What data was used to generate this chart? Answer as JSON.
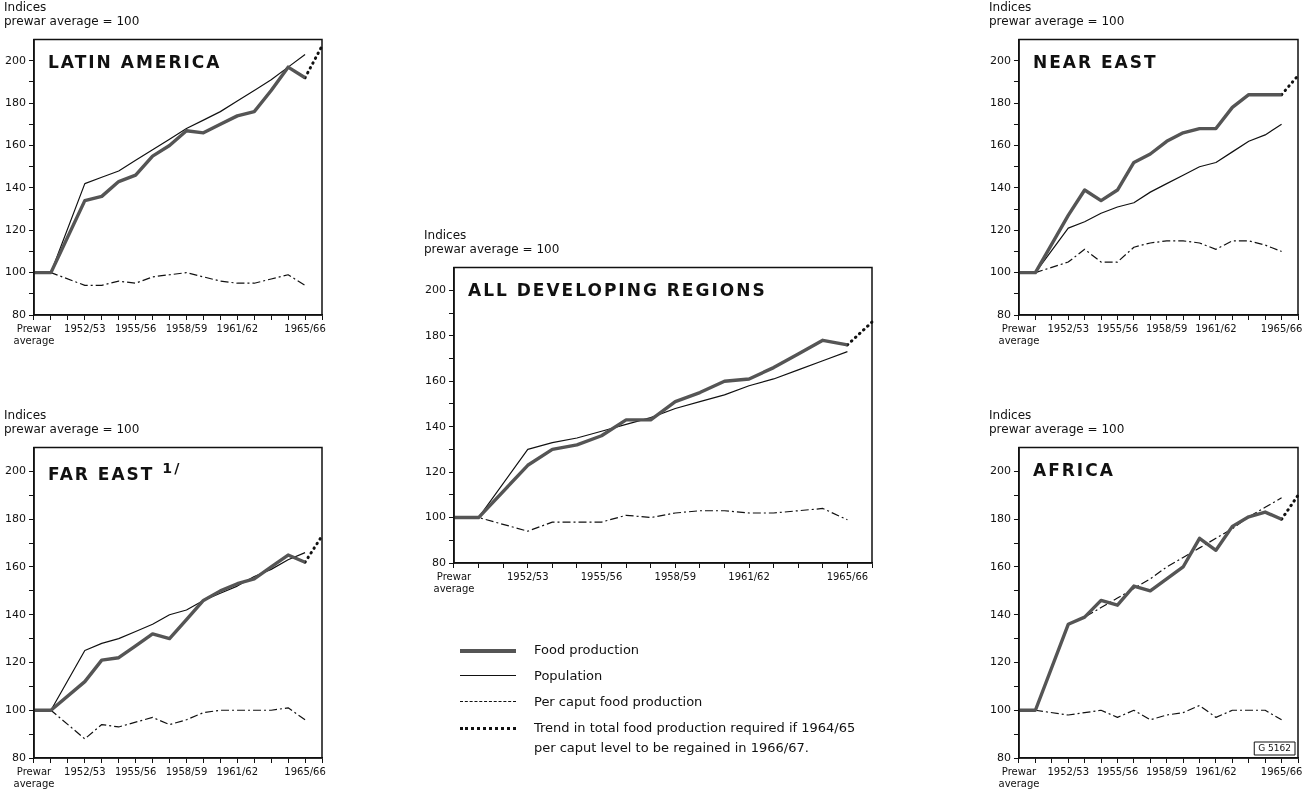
{
  "chart_data": [
    {
      "type": "line",
      "title": "LATIN AMERICA",
      "ylabel": "Indices\nprewar average = 100",
      "marker": "none",
      "grid": false,
      "categories": [
        "Prewar average",
        null,
        null,
        "1952/53",
        null,
        null,
        "1955/56",
        null,
        null,
        "1958/59",
        null,
        null,
        "1961/62",
        null,
        null,
        null,
        "1965/66",
        null
      ],
      "ylim": [
        80,
        210
      ],
      "yticks": [
        80,
        {
          "value": 90,
          "label": null
        },
        100,
        {
          "value": 110,
          "label": null
        },
        120,
        {
          "value": 130,
          "label": null
        },
        140,
        {
          "value": 150,
          "label": null
        },
        160,
        {
          "value": 170,
          "label": null
        },
        180,
        {
          "value": 190,
          "label": null
        },
        200
      ],
      "series": [
        {
          "color": "#555555",
          "values": [
            100,
            100,
            null,
            134,
            136,
            143,
            146,
            155,
            160,
            167,
            166,
            170,
            174,
            176,
            186,
            197,
            192,
            null
          ]
        },
        {
          "color": "#111111",
          "values": [
            100,
            100,
            null,
            142,
            145,
            148,
            153,
            158,
            163,
            168,
            172,
            176,
            181,
            186,
            191,
            197,
            203,
            null
          ]
        },
        {
          "color": "#111111",
          "line_style": "dashed",
          "values": [
            100,
            100,
            null,
            94,
            94,
            96,
            95,
            98,
            99,
            100,
            98,
            96,
            95,
            95,
            97,
            99,
            94,
            null
          ]
        },
        {
          "color": "#111111",
          "line_style": "dotted",
          "values": [
            null,
            null,
            null,
            null,
            null,
            null,
            null,
            null,
            null,
            null,
            null,
            null,
            null,
            null,
            null,
            null,
            192,
            207
          ]
        }
      ]
    },
    {
      "type": "line",
      "title": "NEAR EAST",
      "ylabel": "Indices\nprewar average = 100",
      "marker": "none",
      "grid": false,
      "categories": [
        "Prewar average",
        null,
        null,
        "1952/53",
        null,
        null,
        "1955/56",
        null,
        null,
        "1958/59",
        null,
        null,
        "1961/62",
        null,
        null,
        null,
        "1965/66",
        null
      ],
      "ylim": [
        80,
        210
      ],
      "yticks": [
        80,
        {
          "value": 90,
          "label": null
        },
        100,
        {
          "value": 110,
          "label": null
        },
        120,
        {
          "value": 130,
          "label": null
        },
        140,
        {
          "value": 150,
          "label": null
        },
        160,
        {
          "value": 170,
          "label": null
        },
        180,
        {
          "value": 190,
          "label": null
        },
        200
      ],
      "series": [
        {
          "color": "#555555",
          "values": [
            100,
            100,
            null,
            127,
            139,
            134,
            139,
            152,
            156,
            162,
            166,
            168,
            168,
            178,
            184,
            184,
            184,
            null
          ]
        },
        {
          "color": "#111111",
          "values": [
            100,
            100,
            null,
            121,
            124,
            128,
            131,
            133,
            138,
            142,
            146,
            150,
            152,
            157,
            162,
            165,
            170,
            null
          ]
        },
        {
          "color": "#111111",
          "line_style": "dashed",
          "values": [
            100,
            100,
            null,
            105,
            111,
            105,
            105,
            112,
            114,
            115,
            115,
            114,
            111,
            115,
            115,
            113,
            110,
            null
          ]
        },
        {
          "color": "#111111",
          "line_style": "dotted",
          "values": [
            null,
            null,
            null,
            null,
            null,
            null,
            null,
            null,
            null,
            null,
            null,
            null,
            null,
            null,
            null,
            null,
            184,
            193
          ]
        }
      ]
    },
    {
      "type": "line",
      "title": "ALL DEVELOPING REGIONS",
      "ylabel": "Indices\nprewar average = 100",
      "marker": "none",
      "grid": false,
      "legend": "bottom",
      "categories": [
        "Prewar average",
        null,
        null,
        "1952/53",
        null,
        null,
        "1955/56",
        null,
        null,
        "1958/59",
        null,
        null,
        "1961/62",
        null,
        null,
        null,
        "1965/66",
        null
      ],
      "ylim": [
        80,
        210
      ],
      "yticks": [
        80,
        {
          "value": 90,
          "label": null
        },
        100,
        {
          "value": 110,
          "label": null
        },
        120,
        {
          "value": 130,
          "label": null
        },
        140,
        {
          "value": 150,
          "label": null
        },
        160,
        {
          "value": 170,
          "label": null
        },
        180,
        {
          "value": 190,
          "label": null
        },
        200
      ],
      "series": [
        {
          "name": "Food production",
          "color": "#555555",
          "values": [
            100,
            100,
            null,
            123,
            130,
            132,
            136,
            143,
            143,
            151,
            155,
            160,
            161,
            166,
            172,
            178,
            176,
            null
          ]
        },
        {
          "name": "Population",
          "color": "#111111",
          "values": [
            100,
            100,
            null,
            130,
            133,
            135,
            138,
            141,
            144,
            148,
            151,
            154,
            158,
            161,
            165,
            169,
            173,
            null
          ]
        },
        {
          "name": "Per caput food production",
          "color": "#111111",
          "line_style": "dashed",
          "values": [
            100,
            100,
            null,
            94,
            98,
            98,
            98,
            101,
            100,
            102,
            103,
            103,
            102,
            102,
            103,
            104,
            99,
            null
          ]
        },
        {
          "name": "Trend in total food production required if 1964/65 per caput level to be regained in 1966/67.",
          "color": "#111111",
          "line_style": "dotted",
          "values": [
            null,
            null,
            null,
            null,
            null,
            null,
            null,
            null,
            null,
            null,
            null,
            null,
            null,
            null,
            null,
            null,
            176,
            186
          ]
        }
      ]
    },
    {
      "type": "line",
      "title": "FAR EAST $^{1/}$",
      "ylabel": "Indices\nprewar average = 100",
      "marker": "none",
      "grid": false,
      "categories": [
        "Prewar average",
        null,
        null,
        "1952/53",
        null,
        null,
        "1955/56",
        null,
        null,
        "1958/59",
        null,
        null,
        "1961/62",
        null,
        null,
        null,
        "1965/66",
        null
      ],
      "ylim": [
        80,
        210
      ],
      "yticks": [
        80,
        {
          "value": 90,
          "label": null
        },
        100,
        {
          "value": 110,
          "label": null
        },
        120,
        {
          "value": 130,
          "label": null
        },
        140,
        {
          "value": 150,
          "label": null
        },
        160,
        {
          "value": 170,
          "label": null
        },
        180,
        {
          "value": 190,
          "label": null
        },
        200
      ],
      "series": [
        {
          "color": "#555555",
          "values": [
            100,
            100,
            null,
            112,
            121,
            122,
            127,
            132,
            130,
            138,
            146,
            150,
            153,
            155,
            160,
            165,
            162,
            null
          ]
        },
        {
          "color": "#111111",
          "values": [
            100,
            100,
            null,
            125,
            128,
            130,
            133,
            136,
            140,
            142,
            146,
            149,
            152,
            156,
            159,
            163,
            166,
            null
          ]
        },
        {
          "color": "#111111",
          "line_style": "dashed",
          "values": [
            100,
            100,
            null,
            88,
            94,
            93,
            95,
            97,
            94,
            96,
            99,
            100,
            100,
            100,
            100,
            101,
            96,
            null
          ]
        },
        {
          "color": "#111111",
          "line_style": "dotted",
          "values": [
            null,
            null,
            null,
            null,
            null,
            null,
            null,
            null,
            null,
            null,
            null,
            null,
            null,
            null,
            null,
            null,
            162,
            173
          ]
        }
      ]
    },
    {
      "type": "line",
      "title": "AFRICA",
      "ylabel": "Indices\nprewar average = 100",
      "marker": "none",
      "grid": false,
      "annotations": [
        "G 5162"
      ],
      "categories": [
        "Prewar average",
        null,
        null,
        "1952/53",
        null,
        null,
        "1955/56",
        null,
        null,
        "1958/59",
        null,
        null,
        "1961/62",
        null,
        null,
        null,
        "1965/66",
        null
      ],
      "ylim": [
        80,
        210
      ],
      "yticks": [
        80,
        {
          "value": 90,
          "label": null
        },
        100,
        {
          "value": 110,
          "label": null
        },
        120,
        {
          "value": 130,
          "label": null
        },
        140,
        {
          "value": 150,
          "label": null
        },
        160,
        {
          "value": 170,
          "label": null
        },
        180,
        {
          "value": 190,
          "label": null
        },
        200
      ],
      "series": [
        {
          "color": "#555555",
          "values": [
            100,
            100,
            null,
            136,
            139,
            146,
            144,
            152,
            150,
            155,
            160,
            172,
            167,
            177,
            181,
            183,
            180,
            null
          ]
        },
        {
          "color": "#111111",
          "line_style": "dashed",
          "values": [
            100,
            100,
            null,
            136,
            139,
            143,
            147,
            151,
            155,
            160,
            164,
            168,
            172,
            176,
            181,
            185,
            189,
            null
          ]
        },
        {
          "color": "#111111",
          "line_style": "dashed",
          "values": [
            100,
            100,
            null,
            98,
            99,
            100,
            97,
            100,
            96,
            98,
            99,
            102,
            97,
            100,
            100,
            100,
            96,
            null
          ]
        },
        {
          "color": "#111111",
          "line_style": "dotted",
          "values": [
            null,
            null,
            null,
            null,
            null,
            null,
            null,
            null,
            null,
            null,
            null,
            null,
            null,
            null,
            null,
            null,
            180,
            190
          ]
        }
      ]
    }
  ]
}
